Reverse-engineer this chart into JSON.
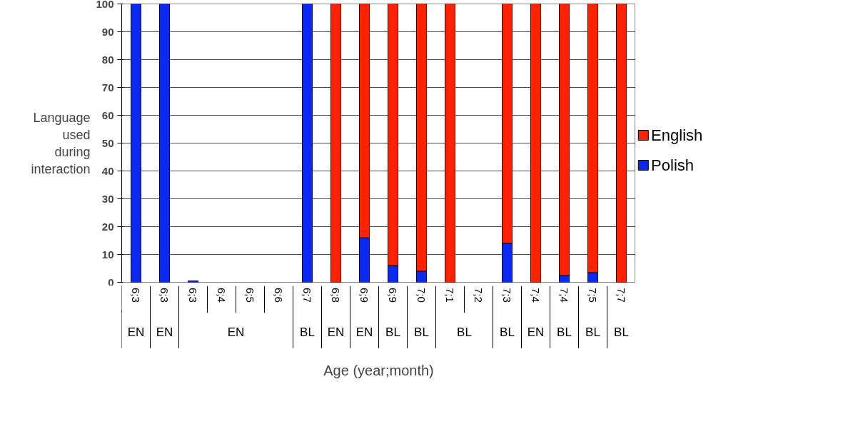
{
  "chart_data": {
    "type": "bar",
    "stacked": true,
    "xlabel": "Age (year;month)",
    "ylabel": "Language\nused\nduring\ninteraction",
    "categories": [
      "6;3",
      "6;3",
      "6;3",
      "6;4",
      "6;5",
      "6;6",
      "6;7",
      "6;8",
      "6;9",
      "6;9",
      "7;0",
      "7;1",
      "7;2",
      "7;3",
      "7;4",
      "7;4",
      "7;5",
      "7;7"
    ],
    "series": [
      {
        "name": "Polish",
        "color": "#0a28f0",
        "values": [
          100,
          100,
          0.5,
          0,
          0,
          0,
          100,
          0,
          16,
          6,
          4,
          0,
          0,
          14,
          0,
          2.5,
          3.5,
          0
        ]
      },
      {
        "name": "English",
        "color": "#ff2200",
        "values": [
          0,
          0,
          0,
          0,
          0,
          0,
          0,
          100,
          84,
          94,
          96,
          100,
          0,
          86,
          100,
          97.5,
          96.5,
          100
        ]
      }
    ],
    "annotations": [
      "EN",
      "EN",
      "EN",
      "BL",
      "EN",
      "EN",
      "BL",
      "BL",
      "BL",
      "BL",
      "EN",
      "BL",
      "BL",
      "BL"
    ],
    "ylim": [
      0,
      100
    ],
    "yticks": [
      0,
      10,
      20,
      30,
      40,
      50,
      60,
      70,
      80,
      90,
      100
    ],
    "grid": "y",
    "legend": "right"
  }
}
